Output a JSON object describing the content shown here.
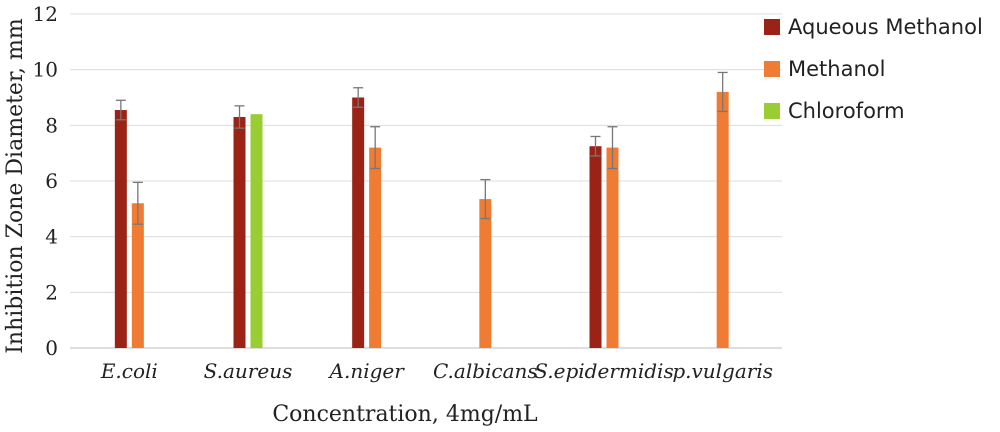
{
  "chart_data": {
    "type": "bar",
    "categories": [
      "E.coli",
      "S.aureus",
      "A.niger",
      "C.albicans",
      "S.epidermidis",
      "p.vulgaris"
    ],
    "series": [
      {
        "name": "Aqueous Methanol",
        "color": "#9b2316",
        "values": [
          8.55,
          8.3,
          9.0,
          null,
          7.25,
          null
        ],
        "errors": [
          0.35,
          0.4,
          0.35,
          null,
          0.35,
          null
        ]
      },
      {
        "name": "Methanol",
        "color": "#f07b32",
        "values": [
          5.2,
          null,
          7.2,
          5.35,
          7.2,
          9.2
        ],
        "errors": [
          0.75,
          null,
          0.75,
          0.7,
          0.75,
          0.7
        ]
      },
      {
        "name": "Chloroform",
        "color": "#9acd32",
        "values": [
          null,
          8.4,
          null,
          null,
          null,
          null
        ],
        "errors": [
          null,
          null,
          null,
          null,
          null,
          null
        ]
      }
    ],
    "title": "",
    "xlabel": "Concentration, 4mg/mL",
    "ylabel": "Inhibition Zone Diameter, mm",
    "ylim": [
      0,
      12
    ],
    "yticks": [
      0,
      2,
      4,
      6,
      8,
      10,
      12
    ],
    "grid": true,
    "legend_position": "top-right"
  }
}
